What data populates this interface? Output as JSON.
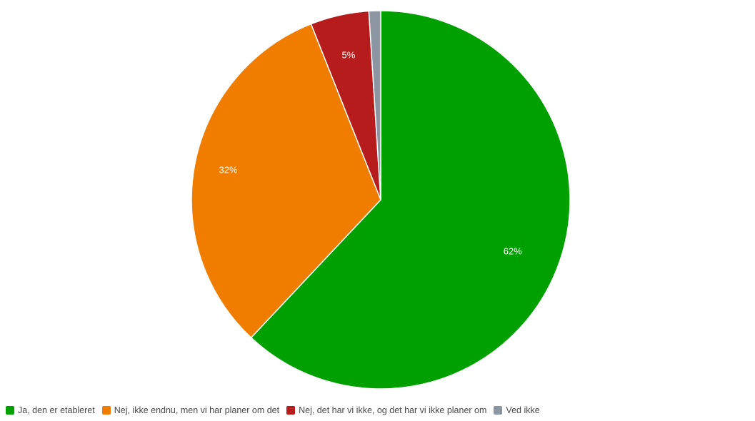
{
  "chart_data": {
    "type": "pie",
    "categories": [
      "Ja, den er etableret",
      "Nej, ikke endnu, men vi har planer om det",
      "Nej, det har vi ikke, og det har vi ikke planer om",
      "Ved ikke"
    ],
    "values": [
      62,
      32,
      5,
      1
    ],
    "labels": [
      "62%",
      "32%",
      "5%",
      ""
    ],
    "colors": [
      "#00a000",
      "#f07d00",
      "#b71c1c",
      "#8c96a3"
    ],
    "legend_position": "bottom",
    "start_angle": "top, clockwise"
  }
}
